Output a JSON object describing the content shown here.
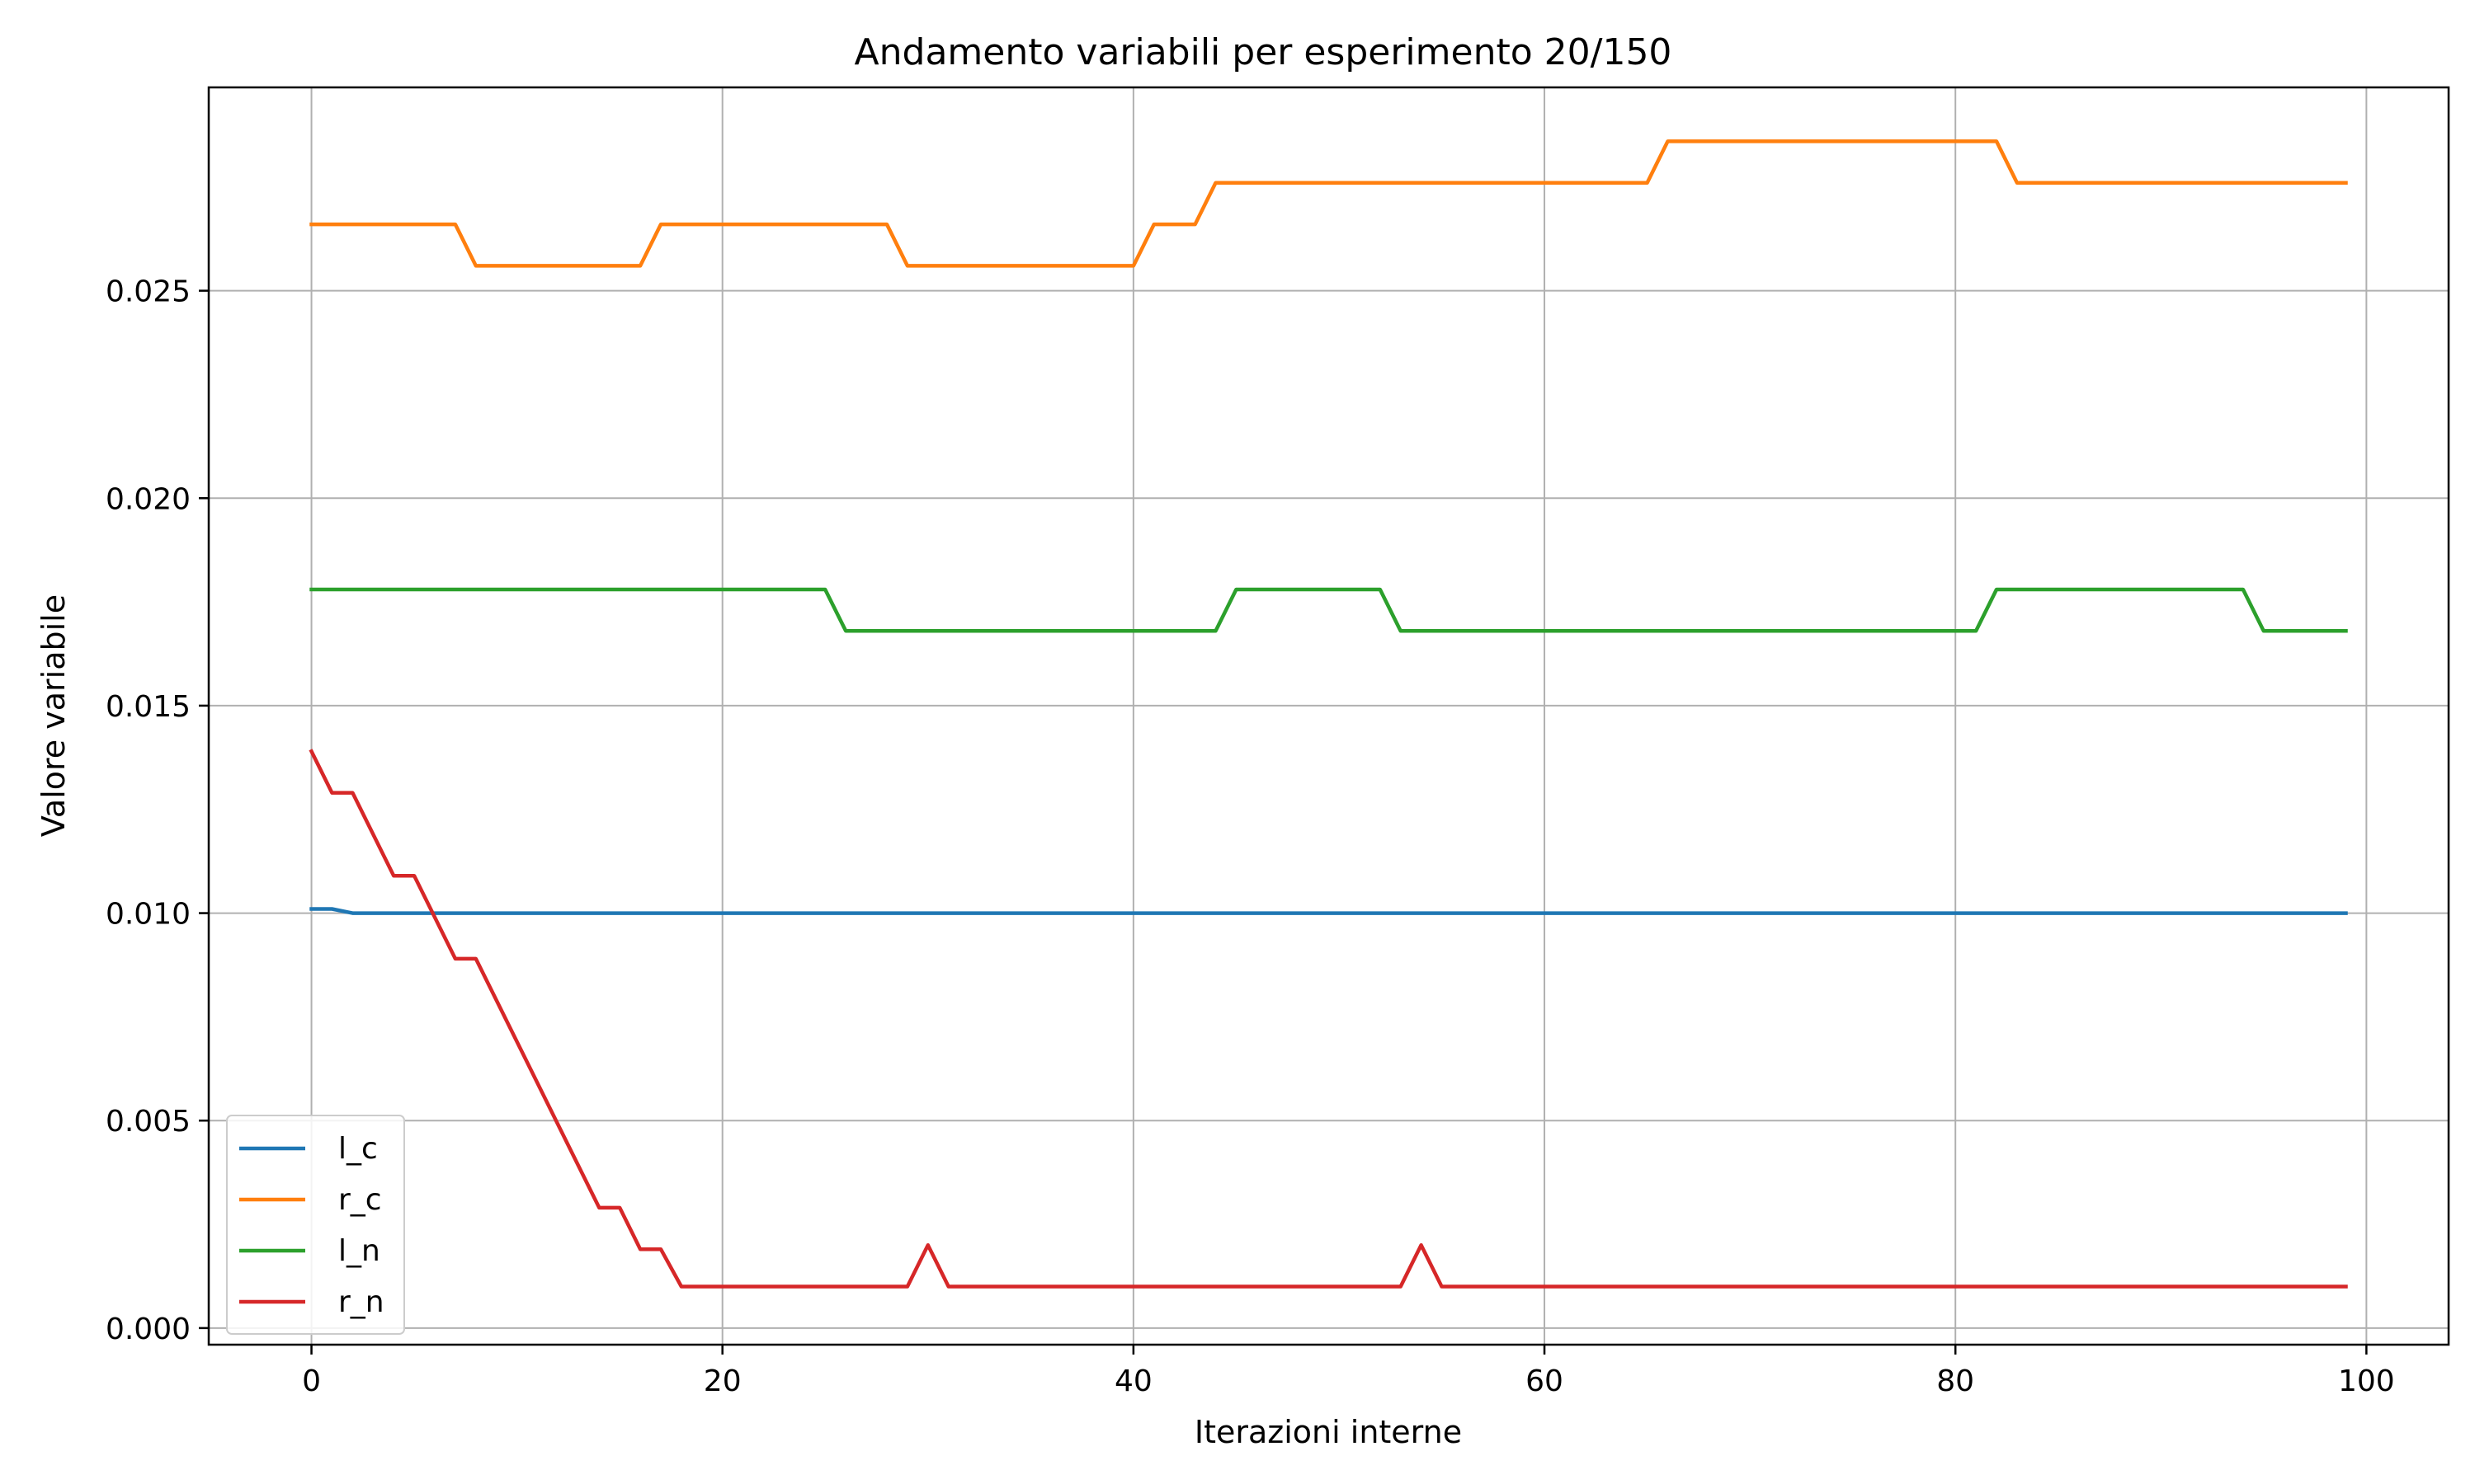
{
  "chart_data": {
    "type": "line",
    "title": "Andamento variabili per esperimento 20/150",
    "xlabel": "Iterazioni interne",
    "ylabel": "Valore variabile",
    "xlim": [
      -5,
      104
    ],
    "ylim": [
      -0.0004,
      0.0299
    ],
    "xticks": [
      0,
      20,
      40,
      60,
      80,
      100
    ],
    "xtick_labels": [
      "0",
      "20",
      "40",
      "60",
      "80",
      "100"
    ],
    "yticks": [
      0.0,
      0.005,
      0.01,
      0.015,
      0.02,
      0.025
    ],
    "ytick_labels": [
      "0.000",
      "0.005",
      "0.010",
      "0.015",
      "0.020",
      "0.025"
    ],
    "grid": true,
    "legend_position": "lower-left",
    "series": [
      {
        "name": "l_c",
        "color": "#1f77b4",
        "points": [
          [
            0,
            0.0101
          ],
          [
            1,
            0.0101
          ],
          [
            2,
            0.01
          ],
          [
            99,
            0.01
          ]
        ]
      },
      {
        "name": "r_c",
        "color": "#ff7f0e",
        "points": [
          [
            0,
            0.0266
          ],
          [
            7,
            0.0266
          ],
          [
            8,
            0.0256
          ],
          [
            16,
            0.0256
          ],
          [
            17,
            0.0266
          ],
          [
            28,
            0.0266
          ],
          [
            29,
            0.0256
          ],
          [
            40,
            0.0256
          ],
          [
            41,
            0.0266
          ],
          [
            43,
            0.0266
          ],
          [
            44,
            0.0276
          ],
          [
            65,
            0.0276
          ],
          [
            66,
            0.0286
          ],
          [
            82,
            0.0286
          ],
          [
            83,
            0.0276
          ],
          [
            99,
            0.0276
          ]
        ]
      },
      {
        "name": "l_n",
        "color": "#2ca02c",
        "points": [
          [
            0,
            0.0178
          ],
          [
            25,
            0.0178
          ],
          [
            26,
            0.0168
          ],
          [
            44,
            0.0168
          ],
          [
            45,
            0.0178
          ],
          [
            52,
            0.0178
          ],
          [
            53,
            0.0168
          ],
          [
            81,
            0.0168
          ],
          [
            82,
            0.0178
          ],
          [
            94,
            0.0178
          ],
          [
            95,
            0.0168
          ],
          [
            99,
            0.0168
          ]
        ]
      },
      {
        "name": "r_n",
        "color": "#d62728",
        "points": [
          [
            0,
            0.0139
          ],
          [
            1,
            0.0129
          ],
          [
            2,
            0.0129
          ],
          [
            4,
            0.0109
          ],
          [
            5,
            0.0109
          ],
          [
            7,
            0.0089
          ],
          [
            8,
            0.0089
          ],
          [
            14,
            0.0029
          ],
          [
            15,
            0.0029
          ],
          [
            16,
            0.0019
          ],
          [
            17,
            0.0019
          ],
          [
            18,
            0.001
          ],
          [
            29,
            0.001
          ],
          [
            30,
            0.002
          ],
          [
            31,
            0.001
          ],
          [
            53,
            0.001
          ],
          [
            54,
            0.002
          ],
          [
            55,
            0.001
          ],
          [
            99,
            0.001
          ]
        ]
      }
    ]
  }
}
